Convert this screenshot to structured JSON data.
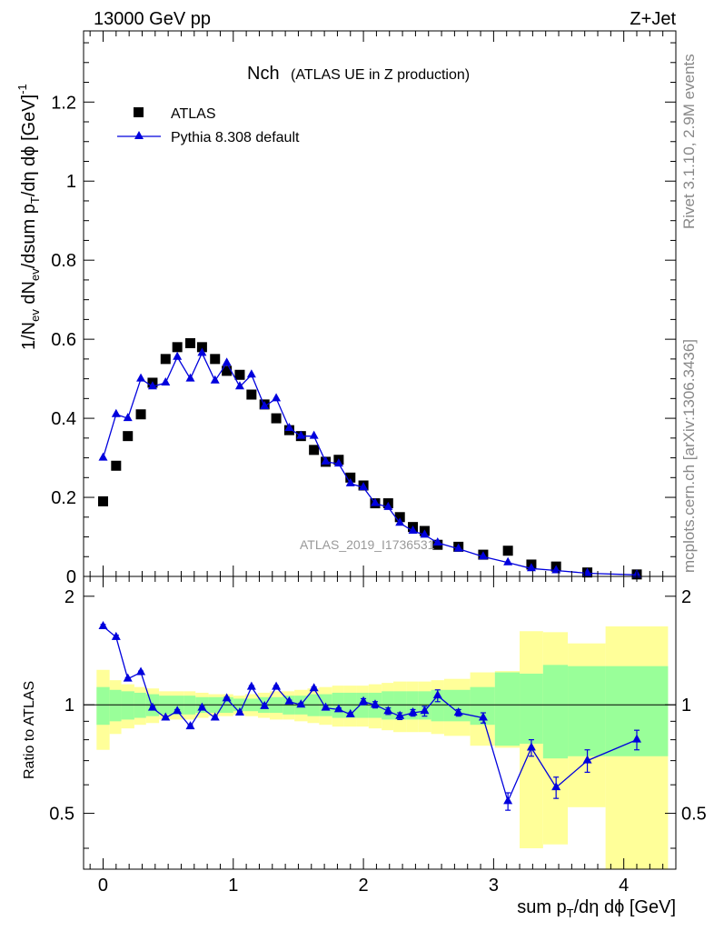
{
  "header": {
    "left": "13000 GeV pp",
    "right": "Z+Jet"
  },
  "side_labels": {
    "rivet": "Rivet 3.1.10,  2.9M events",
    "mcplots": "mcplots.cern.ch [arXiv:1306.3436]"
  },
  "watermark": "ATLAS_2019_I1736531",
  "colors": {
    "data": "#000000",
    "mc": "#0000dd",
    "band_inner": "#99ff99",
    "band_outer": "#ffff99"
  },
  "chart_data": [
    {
      "type": "scatter",
      "name": "main",
      "title": "Nch",
      "subtitle": "(ATLAS UE in Z production)",
      "xlabel": "sum p_T/dη dϕ [GeV]",
      "ylabel": "1/N_ev dN_ev/dsum p_T/dη dϕ [GeV]^-1",
      "xlim": [
        -0.15,
        4.4
      ],
      "ylim": [
        0,
        1.38
      ],
      "yticks": [
        0,
        0.2,
        0.4,
        0.6,
        0.8,
        1,
        1.2
      ],
      "ytick_labels": [
        "0",
        "0.2",
        "0.4",
        "0.6",
        "0.8",
        "1",
        "1.2"
      ],
      "legend": {
        "position": "top-left",
        "entries": [
          "ATLAS",
          "Pythia 8.308 default"
        ]
      },
      "series": [
        {
          "name": "ATLAS",
          "marker": "square",
          "x": [
            0,
            0.1,
            0.19,
            0.29,
            0.38,
            0.48,
            0.57,
            0.67,
            0.76,
            0.86,
            0.95,
            1.05,
            1.14,
            1.24,
            1.33,
            1.43,
            1.52,
            1.62,
            1.71,
            1.81,
            1.9,
            2.0,
            2.09,
            2.19,
            2.28,
            2.38,
            2.47,
            2.57,
            2.73,
            2.92,
            3.11,
            3.29,
            3.48,
            3.72,
            4.1
          ],
          "y": [
            0.19,
            0.28,
            0.355,
            0.41,
            0.49,
            0.55,
            0.58,
            0.59,
            0.58,
            0.55,
            0.52,
            0.51,
            0.46,
            0.435,
            0.4,
            0.37,
            0.355,
            0.32,
            0.29,
            0.295,
            0.25,
            0.23,
            0.185,
            0.185,
            0.15,
            0.125,
            0.115,
            0.08,
            0.075,
            0.055,
            0.065,
            0.03,
            0.025,
            0.01,
            0.005
          ]
        },
        {
          "name": "Pythia 8.308 default",
          "marker": "triangle",
          "x": [
            0,
            0.1,
            0.19,
            0.29,
            0.38,
            0.48,
            0.57,
            0.67,
            0.76,
            0.86,
            0.95,
            1.05,
            1.14,
            1.24,
            1.33,
            1.43,
            1.52,
            1.62,
            1.71,
            1.81,
            1.9,
            2.0,
            2.09,
            2.19,
            2.28,
            2.38,
            2.47,
            2.57,
            2.73,
            2.92,
            3.11,
            3.29,
            3.48,
            3.72,
            4.1
          ],
          "y": [
            0.3,
            0.41,
            0.4,
            0.5,
            0.48,
            0.49,
            0.555,
            0.5,
            0.565,
            0.495,
            0.54,
            0.48,
            0.51,
            0.43,
            0.45,
            0.375,
            0.355,
            0.355,
            0.29,
            0.285,
            0.235,
            0.225,
            0.185,
            0.175,
            0.135,
            0.115,
            0.105,
            0.085,
            0.07,
            0.05,
            0.035,
            0.02,
            0.015,
            0.008,
            0.004
          ]
        }
      ]
    },
    {
      "type": "line",
      "name": "ratio",
      "ylabel": "Ratio to ATLAS",
      "xlabel": "sum p_T/dη dϕ [GeV]",
      "xlim": [
        -0.15,
        4.4
      ],
      "ylim": [
        0.35,
        2.27
      ],
      "xticks": [
        0,
        1,
        2,
        3,
        4
      ],
      "xtick_labels": [
        "0",
        "1",
        "2",
        "3",
        "4"
      ],
      "yticks": [
        0.5,
        1,
        2
      ],
      "ytick_labels": [
        "0.5",
        "1",
        "2"
      ],
      "reference_line": 1,
      "bands": {
        "edges": [
          -0.05,
          0.05,
          0.14,
          0.24,
          0.33,
          0.43,
          0.52,
          0.62,
          0.71,
          0.81,
          0.9,
          1.0,
          1.09,
          1.19,
          1.28,
          1.38,
          1.47,
          1.57,
          1.66,
          1.76,
          1.85,
          1.95,
          2.04,
          2.14,
          2.23,
          2.33,
          2.42,
          2.52,
          2.62,
          2.82,
          3.01,
          3.2,
          3.38,
          3.57,
          3.86,
          4.34
        ],
        "inner_low": [
          0.88,
          0.9,
          0.91,
          0.92,
          0.93,
          0.94,
          0.94,
          0.94,
          0.95,
          0.95,
          0.95,
          0.96,
          0.96,
          0.95,
          0.95,
          0.94,
          0.94,
          0.93,
          0.93,
          0.92,
          0.92,
          0.92,
          0.92,
          0.91,
          0.91,
          0.91,
          0.91,
          0.9,
          0.9,
          0.88,
          0.77,
          0.78,
          0.71,
          0.72,
          0.72
        ],
        "inner_high": [
          1.12,
          1.1,
          1.09,
          1.08,
          1.07,
          1.06,
          1.06,
          1.06,
          1.05,
          1.05,
          1.05,
          1.04,
          1.04,
          1.05,
          1.05,
          1.06,
          1.06,
          1.07,
          1.07,
          1.08,
          1.08,
          1.08,
          1.08,
          1.09,
          1.09,
          1.09,
          1.09,
          1.1,
          1.1,
          1.12,
          1.23,
          1.22,
          1.29,
          1.28,
          1.28
        ],
        "outer_low": [
          0.75,
          0.83,
          0.86,
          0.88,
          0.89,
          0.91,
          0.91,
          0.91,
          0.92,
          0.93,
          0.93,
          0.94,
          0.93,
          0.92,
          0.91,
          0.91,
          0.9,
          0.89,
          0.88,
          0.87,
          0.87,
          0.87,
          0.86,
          0.85,
          0.84,
          0.84,
          0.84,
          0.83,
          0.82,
          0.77,
          0.76,
          0.4,
          0.41,
          0.52,
          0.35
        ],
        "outer_high": [
          1.25,
          1.17,
          1.14,
          1.12,
          1.11,
          1.09,
          1.09,
          1.09,
          1.08,
          1.07,
          1.07,
          1.06,
          1.07,
          1.08,
          1.09,
          1.09,
          1.1,
          1.11,
          1.12,
          1.13,
          1.13,
          1.13,
          1.14,
          1.15,
          1.16,
          1.16,
          1.16,
          1.17,
          1.18,
          1.23,
          1.24,
          1.6,
          1.59,
          1.48,
          1.65
        ]
      },
      "series": [
        {
          "name": "Pythia 8.308 default / ATLAS",
          "marker": "triangle",
          "x": [
            0,
            0.1,
            0.19,
            0.29,
            0.38,
            0.48,
            0.57,
            0.67,
            0.76,
            0.86,
            0.95,
            1.05,
            1.14,
            1.24,
            1.33,
            1.43,
            1.52,
            1.62,
            1.71,
            1.81,
            1.9,
            2.0,
            2.09,
            2.19,
            2.28,
            2.38,
            2.47,
            2.57,
            2.73,
            2.92,
            3.11,
            3.29,
            3.48,
            3.72,
            4.1
          ],
          "y": [
            1.65,
            1.54,
            1.18,
            1.23,
            0.98,
            0.92,
            0.96,
            0.87,
            0.98,
            0.92,
            1.04,
            0.95,
            1.12,
            0.99,
            1.12,
            1.02,
            1.0,
            1.11,
            0.98,
            0.97,
            0.94,
            1.02,
            1.0,
            0.96,
            0.93,
            0.95,
            0.96,
            1.06,
            0.95,
            0.92,
            0.54,
            0.76,
            0.59,
            0.7,
            0.8
          ],
          "err": [
            0.02,
            0.02,
            0.01,
            0.01,
            0.01,
            0.01,
            0.01,
            0.01,
            0.01,
            0.01,
            0.01,
            0.01,
            0.01,
            0.01,
            0.01,
            0.01,
            0.01,
            0.01,
            0.01,
            0.01,
            0.01,
            0.02,
            0.02,
            0.02,
            0.02,
            0.02,
            0.03,
            0.04,
            0.02,
            0.03,
            0.03,
            0.04,
            0.04,
            0.05,
            0.05
          ]
        }
      ]
    }
  ]
}
